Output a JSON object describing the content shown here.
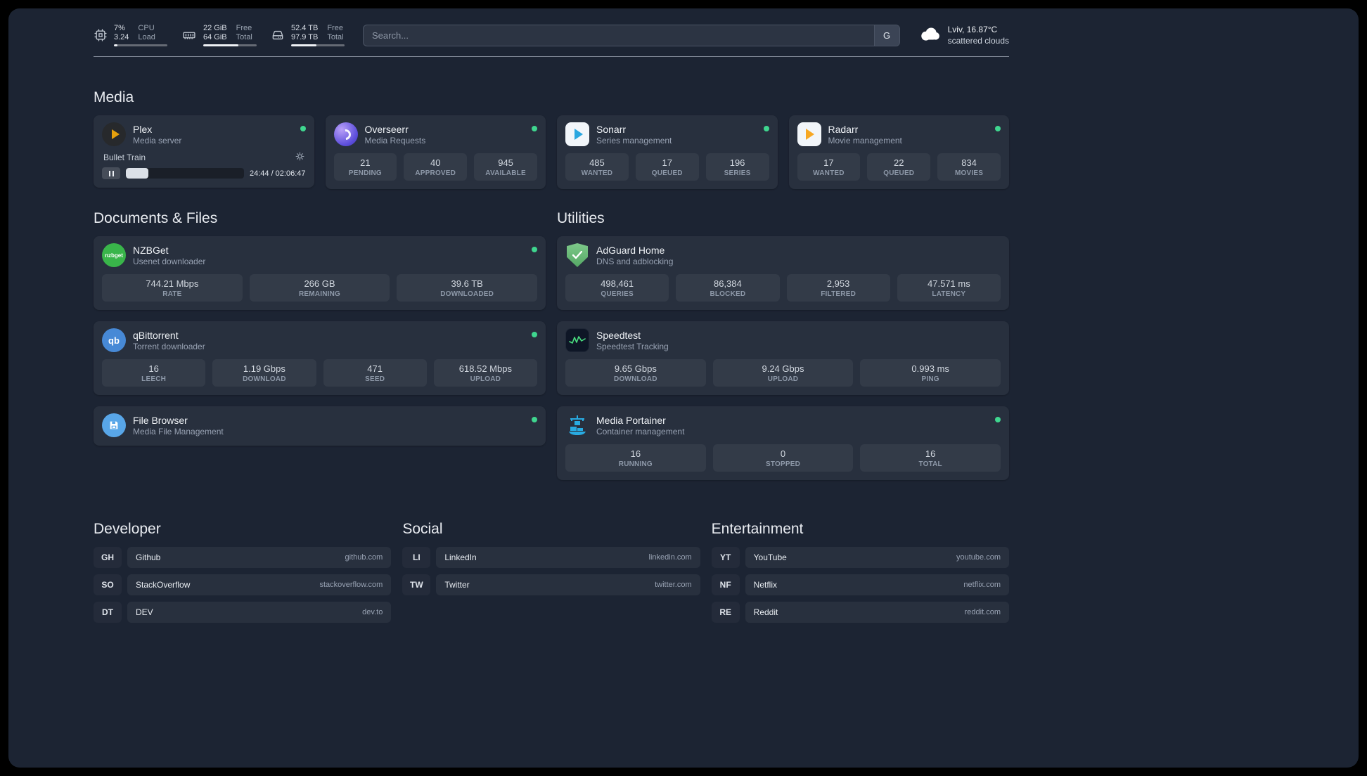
{
  "header": {
    "cpu": {
      "value_top": "7%",
      "value_bottom": "3.24",
      "label_top": "CPU",
      "label_bottom": "Load",
      "bar_percent": 7
    },
    "memory": {
      "value_top": "22 GiB",
      "value_bottom": "64 GiB",
      "label_top": "Free",
      "label_bottom": "Total",
      "bar_percent": 66
    },
    "disk": {
      "value_top": "52.4 TB",
      "value_bottom": "97.9 TB",
      "label_top": "Free",
      "label_bottom": "Total",
      "bar_percent": 47
    },
    "search": {
      "placeholder": "Search...",
      "provider": "G"
    },
    "weather": {
      "location": "Lviv, 16.87°C",
      "condition": "scattered clouds"
    }
  },
  "media": {
    "title": "Media",
    "plex": {
      "name": "Plex",
      "desc": "Media server",
      "now_playing": "Bullet Train",
      "time": "24:44 / 02:06:47",
      "progress_percent": 19
    },
    "overseerr": {
      "name": "Overseerr",
      "desc": "Media Requests",
      "stats": [
        {
          "value": "21",
          "label": "PENDING"
        },
        {
          "value": "40",
          "label": "APPROVED"
        },
        {
          "value": "945",
          "label": "AVAILABLE"
        }
      ]
    },
    "sonarr": {
      "name": "Sonarr",
      "desc": "Series management",
      "stats": [
        {
          "value": "485",
          "label": "WANTED"
        },
        {
          "value": "17",
          "label": "QUEUED"
        },
        {
          "value": "196",
          "label": "SERIES"
        }
      ]
    },
    "radarr": {
      "name": "Radarr",
      "desc": "Movie management",
      "stats": [
        {
          "value": "17",
          "label": "WANTED"
        },
        {
          "value": "22",
          "label": "QUEUED"
        },
        {
          "value": "834",
          "label": "MOVIES"
        }
      ]
    }
  },
  "documents": {
    "title": "Documents & Files",
    "nzbget": {
      "name": "NZBGet",
      "desc": "Usenet downloader",
      "icon_text": "nzbget",
      "stats": [
        {
          "value": "744.21 Mbps",
          "label": "RATE"
        },
        {
          "value": "266 GB",
          "label": "REMAINING"
        },
        {
          "value": "39.6 TB",
          "label": "DOWNLOADED"
        }
      ]
    },
    "qbittorrent": {
      "name": "qBittorrent",
      "desc": "Torrent downloader",
      "icon_text": "qb",
      "stats": [
        {
          "value": "16",
          "label": "LEECH"
        },
        {
          "value": "1.19 Gbps",
          "label": "DOWNLOAD"
        },
        {
          "value": "471",
          "label": "SEED"
        },
        {
          "value": "618.52 Mbps",
          "label": "UPLOAD"
        }
      ]
    },
    "filebrowser": {
      "name": "File Browser",
      "desc": "Media File Management"
    }
  },
  "utilities": {
    "title": "Utilities",
    "adguard": {
      "name": "AdGuard Home",
      "desc": "DNS and adblocking",
      "stats": [
        {
          "value": "498,461",
          "label": "QUERIES"
        },
        {
          "value": "86,384",
          "label": "BLOCKED"
        },
        {
          "value": "2,953",
          "label": "FILTERED"
        },
        {
          "value": "47.571 ms",
          "label": "LATENCY"
        }
      ]
    },
    "speedtest": {
      "name": "Speedtest",
      "desc": "Speedtest Tracking",
      "stats": [
        {
          "value": "9.65 Gbps",
          "label": "DOWNLOAD"
        },
        {
          "value": "9.24 Gbps",
          "label": "UPLOAD"
        },
        {
          "value": "0.993 ms",
          "label": "PING"
        }
      ]
    },
    "portainer": {
      "name": "Media Portainer",
      "desc": "Container management",
      "stats": [
        {
          "value": "16",
          "label": "RUNNING"
        },
        {
          "value": "0",
          "label": "STOPPED"
        },
        {
          "value": "16",
          "label": "TOTAL"
        }
      ]
    }
  },
  "bookmarks": {
    "developer": {
      "title": "Developer",
      "items": [
        {
          "abbr": "GH",
          "name": "Github",
          "host": "github.com"
        },
        {
          "abbr": "SO",
          "name": "StackOverflow",
          "host": "stackoverflow.com"
        },
        {
          "abbr": "DT",
          "name": "DEV",
          "host": "dev.to"
        }
      ]
    },
    "social": {
      "title": "Social",
      "items": [
        {
          "abbr": "LI",
          "name": "LinkedIn",
          "host": "linkedin.com"
        },
        {
          "abbr": "TW",
          "name": "Twitter",
          "host": "twitter.com"
        }
      ]
    },
    "entertainment": {
      "title": "Entertainment",
      "items": [
        {
          "abbr": "YT",
          "name": "YouTube",
          "host": "youtube.com"
        },
        {
          "abbr": "NF",
          "name": "Netflix",
          "host": "netflix.com"
        },
        {
          "abbr": "RE",
          "name": "Reddit",
          "host": "reddit.com"
        }
      ]
    }
  }
}
